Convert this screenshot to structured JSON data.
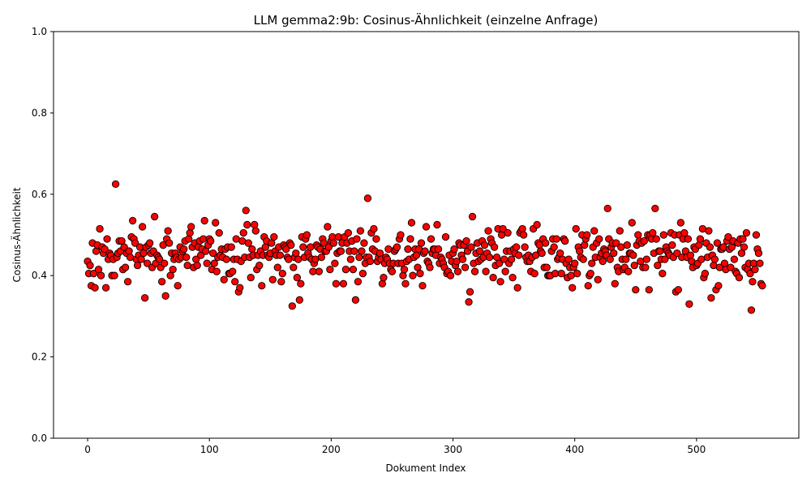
{
  "chart_data": {
    "type": "scatter",
    "title": "LLM gemma2:9b: Cosinus-Ähnlichkeit (einzelne Anfrage)",
    "xlabel": "Dokument Index",
    "ylabel": "Cosinus-Ähnlichkeit",
    "xlim": [
      -28,
      584
    ],
    "ylim": [
      0.0,
      1.0
    ],
    "xticks": [
      0,
      100,
      200,
      300,
      400,
      500
    ],
    "yticks": [
      0.0,
      0.2,
      0.4,
      0.6,
      0.8,
      1.0
    ],
    "xtick_labels": [
      "0",
      "100",
      "200",
      "300",
      "400",
      "500"
    ],
    "ytick_labels": [
      "0.0",
      "0.2",
      "0.4",
      "0.6",
      "0.8",
      "1.0"
    ],
    "grid": false,
    "legend": "none",
    "marker_fill": "#ff0000",
    "marker_edge": "#000000",
    "n_points": 557,
    "x_start": 0,
    "y": [
      0.435,
      0.405,
      0.425,
      0.375,
      0.48,
      0.405,
      0.37,
      0.46,
      0.475,
      0.415,
      0.515,
      0.4,
      0.47,
      0.455,
      0.465,
      0.37,
      0.49,
      0.44,
      0.455,
      0.45,
      0.4,
      0.44,
      0.4,
      0.625,
      0.445,
      0.455,
      0.485,
      0.46,
      0.485,
      0.415,
      0.47,
      0.42,
      0.455,
      0.385,
      0.46,
      0.445,
      0.495,
      0.535,
      0.49,
      0.48,
      0.44,
      0.425,
      0.45,
      0.47,
      0.44,
      0.52,
      0.455,
      0.345,
      0.47,
      0.43,
      0.475,
      0.48,
      0.455,
      0.42,
      0.46,
      0.545,
      0.43,
      0.45,
      0.445,
      0.44,
      0.42,
      0.385,
      0.475,
      0.43,
      0.35,
      0.49,
      0.51,
      0.48,
      0.4,
      0.455,
      0.415,
      0.44,
      0.455,
      0.445,
      0.375,
      0.44,
      0.47,
      0.445,
      0.46,
      0.465,
      0.485,
      0.445,
      0.425,
      0.49,
      0.505,
      0.52,
      0.47,
      0.42,
      0.48,
      0.44,
      0.425,
      0.47,
      0.485,
      0.45,
      0.465,
      0.49,
      0.535,
      0.46,
      0.43,
      0.475,
      0.49,
      0.485,
      0.415,
      0.455,
      0.43,
      0.53,
      0.41,
      0.445,
      0.505,
      0.45,
      0.465,
      0.445,
      0.39,
      0.465,
      0.44,
      0.47,
      0.405,
      0.405,
      0.47,
      0.41,
      0.44,
      0.385,
      0.49,
      0.44,
      0.36,
      0.37,
      0.435,
      0.485,
      0.505,
      0.445,
      0.56,
      0.525,
      0.48,
      0.445,
      0.395,
      0.465,
      0.45,
      0.525,
      0.51,
      0.415,
      0.45,
      0.425,
      0.46,
      0.375,
      0.45,
      0.495,
      0.47,
      0.485,
      0.45,
      0.445,
      0.455,
      0.48,
      0.39,
      0.495,
      0.46,
      0.45,
      0.42,
      0.47,
      0.45,
      0.385,
      0.405,
      0.475,
      0.47,
      0.465,
      0.445,
      0.44,
      0.48,
      0.475,
      0.325,
      0.42,
      0.445,
      0.455,
      0.395,
      0.44,
      0.34,
      0.38,
      0.495,
      0.47,
      0.445,
      0.49,
      0.5,
      0.455,
      0.445,
      0.47,
      0.44,
      0.41,
      0.43,
      0.44,
      0.475,
      0.47,
      0.41,
      0.465,
      0.445,
      0.49,
      0.48,
      0.46,
      0.46,
      0.52,
      0.47,
      0.415,
      0.485,
      0.495,
      0.48,
      0.43,
      0.38,
      0.455,
      0.495,
      0.46,
      0.46,
      0.48,
      0.38,
      0.495,
      0.415,
      0.48,
      0.505,
      0.46,
      0.44,
      0.485,
      0.415,
      0.46,
      0.34,
      0.49,
      0.385,
      0.445,
      0.51,
      0.46,
      0.405,
      0.48,
      0.43,
      0.445,
      0.59,
      0.445,
      0.435,
      0.505,
      0.465,
      0.515,
      0.46,
      0.49,
      0.435,
      0.445,
      0.455,
      0.44,
      0.38,
      0.395,
      0.43,
      0.445,
      0.44,
      0.465,
      0.43,
      0.415,
      0.41,
      0.43,
      0.46,
      0.465,
      0.47,
      0.43,
      0.49,
      0.5,
      0.43,
      0.4,
      0.415,
      0.38,
      0.435,
      0.465,
      0.44,
      0.49,
      0.53,
      0.4,
      0.445,
      0.465,
      0.45,
      0.42,
      0.465,
      0.405,
      0.48,
      0.375,
      0.455,
      0.46,
      0.52,
      0.435,
      0.43,
      0.42,
      0.49,
      0.455,
      0.465,
      0.465,
      0.45,
      0.525,
      0.465,
      0.43,
      0.445,
      0.44,
      0.43,
      0.42,
      0.495,
      0.405,
      0.41,
      0.45,
      0.4,
      0.435,
      0.455,
      0.465,
      0.425,
      0.435,
      0.41,
      0.48,
      0.475,
      0.45,
      0.44,
      0.475,
      0.42,
      0.485,
      0.46,
      0.335,
      0.36,
      0.47,
      0.545,
      0.43,
      0.41,
      0.455,
      0.48,
      0.435,
      0.46,
      0.44,
      0.485,
      0.445,
      0.475,
      0.41,
      0.455,
      0.51,
      0.445,
      0.49,
      0.48,
      0.395,
      0.47,
      0.425,
      0.445,
      0.515,
      0.43,
      0.385,
      0.5,
      0.515,
      0.44,
      0.41,
      0.46,
      0.505,
      0.43,
      0.46,
      0.44,
      0.395,
      0.465,
      0.455,
      0.47,
      0.37,
      0.45,
      0.505,
      0.51,
      0.515,
      0.5,
      0.47,
      0.445,
      0.435,
      0.45,
      0.435,
      0.41,
      0.445,
      0.515,
      0.405,
      0.45,
      0.525,
      0.48,
      0.475,
      0.46,
      0.455,
      0.49,
      0.42,
      0.48,
      0.42,
      0.4,
      0.4,
      0.4,
      0.46,
      0.49,
      0.47,
      0.405,
      0.49,
      0.44,
      0.445,
      0.455,
      0.405,
      0.44,
      0.49,
      0.485,
      0.43,
      0.395,
      0.44,
      0.42,
      0.4,
      0.37,
      0.42,
      0.43,
      0.515,
      0.405,
      0.47,
      0.46,
      0.445,
      0.5,
      0.44,
      0.475,
      0.49,
      0.5,
      0.375,
      0.4,
      0.405,
      0.43,
      0.47,
      0.51,
      0.445,
      0.48,
      0.39,
      0.49,
      0.445,
      0.455,
      0.435,
      0.465,
      0.46,
      0.45,
      0.565,
      0.49,
      0.44,
      0.47,
      0.48,
      0.455,
      0.38,
      0.48,
      0.42,
      0.41,
      0.51,
      0.47,
      0.44,
      0.415,
      0.42,
      0.44,
      0.475,
      0.41,
      0.455,
      0.455,
      0.53,
      0.45,
      0.425,
      0.365,
      0.475,
      0.5,
      0.485,
      0.435,
      0.48,
      0.42,
      0.485,
      0.42,
      0.44,
      0.5,
      0.365,
      0.5,
      0.49,
      0.505,
      0.455,
      0.565,
      0.49,
      0.425,
      0.46,
      0.46,
      0.44,
      0.405,
      0.5,
      0.44,
      0.47,
      0.46,
      0.455,
      0.45,
      0.505,
      0.475,
      0.445,
      0.5,
      0.36,
      0.455,
      0.365,
      0.5,
      0.53,
      0.445,
      0.49,
      0.505,
      0.46,
      0.445,
      0.49,
      0.33,
      0.45,
      0.435,
      0.42,
      0.47,
      0.465,
      0.425,
      0.43,
      0.475,
      0.49,
      0.44,
      0.515,
      0.395,
      0.405,
      0.48,
      0.445,
      0.51,
      0.47,
      0.345,
      0.45,
      0.425,
      0.44,
      0.365,
      0.48,
      0.375,
      0.42,
      0.465,
      0.465,
      0.47,
      0.43,
      0.415,
      0.485,
      0.495,
      0.465,
      0.42,
      0.47,
      0.485,
      0.44,
      0.41,
      0.405,
      0.48,
      0.395,
      0.49,
      0.455,
      0.49,
      0.47,
      0.42,
      0.505,
      0.415,
      0.43,
      0.405,
      0.315,
      0.385,
      0.43,
      0.415,
      0.5,
      0.465,
      0.455,
      0.43,
      0.38,
      0.375
    ]
  }
}
